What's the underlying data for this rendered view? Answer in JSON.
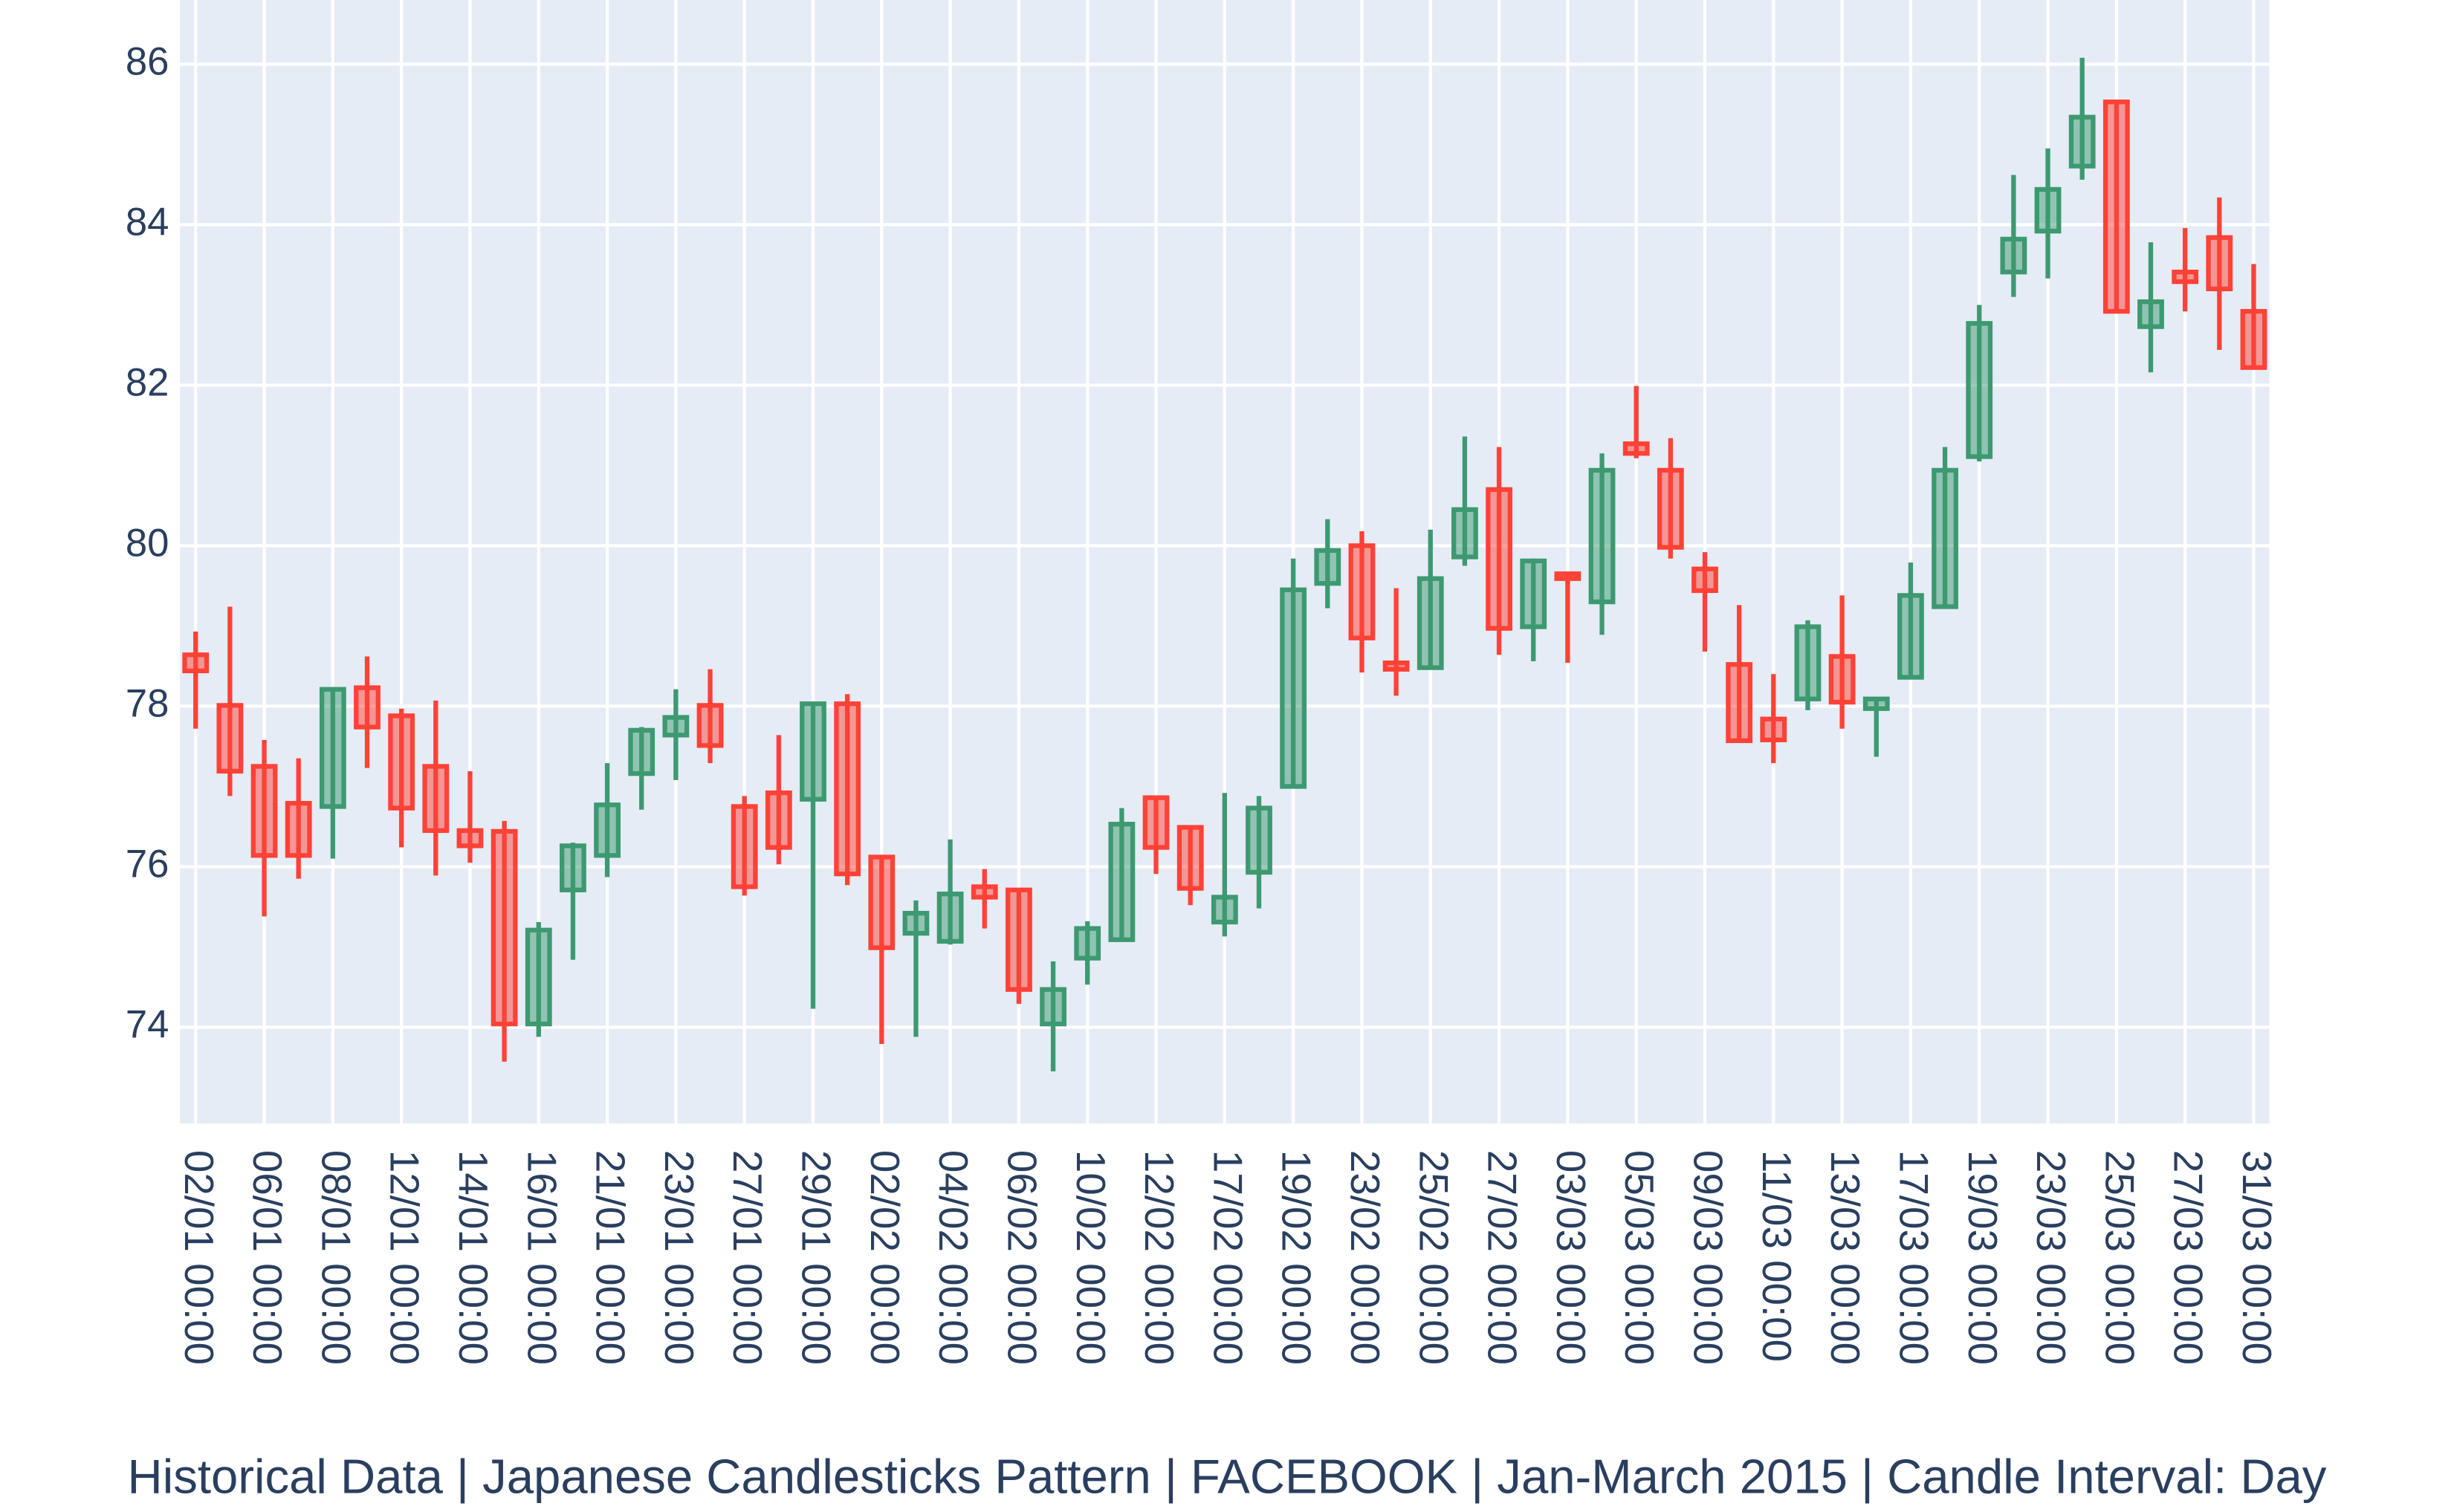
{
  "chart_data": {
    "type": "candlestick",
    "title": "Historical Data | Japanese Candlesticks Pattern | FACEBOOK | Jan-March 2015 | Candle Interval: Day",
    "categories": [
      "02/01 00:00",
      null,
      "06/01 00:00",
      null,
      "08/01 00:00",
      null,
      "12/01 00:00",
      null,
      "14/01 00:00",
      null,
      "16/01 00:00",
      null,
      "21/01 00:00",
      null,
      "23/01 00:00",
      null,
      "27/01 00:00",
      null,
      "29/01 00:00",
      null,
      "02/02 00:00",
      null,
      "04/02 00:00",
      null,
      "06/02 00:00",
      null,
      "10/02 00:00",
      null,
      "12/02 00:00",
      null,
      "17/02 00:00",
      null,
      "19/02 00:00",
      null,
      "23/02 00:00",
      null,
      "25/02 00:00",
      null,
      "27/02 00:00",
      null,
      "03/03 00:00",
      null,
      "05/03 00:00",
      null,
      "09/03 00:00",
      null,
      "11/03 00:00",
      null,
      "13/03 00:00",
      null,
      "17/03 00:00",
      null,
      "19/03 00:00",
      null,
      "23/03 00:00",
      null,
      "25/03 00:00",
      null,
      "27/03 00:00",
      null,
      "31/03 00:00"
    ],
    "open": [
      78.64,
      78.01,
      77.25,
      76.79,
      76.75,
      78.23,
      77.88,
      77.25,
      76.45,
      76.44,
      74.04,
      75.71,
      76.14,
      77.16,
      77.64,
      78.01,
      76.75,
      76.92,
      76.84,
      78.03,
      76.12,
      75.17,
      75.07,
      75.75,
      75.71,
      74.04,
      74.86,
      75.09,
      76.86,
      76.49,
      75.31,
      75.93,
      77.0,
      79.53,
      80.0,
      78.54,
      78.48,
      79.86,
      80.7,
      78.99,
      79.65,
      79.3,
      81.27,
      80.94,
      79.71,
      78.52,
      77.84,
      78.09,
      78.62,
      77.97,
      78.36,
      79.24,
      81.11,
      83.41,
      83.92,
      84.73,
      85.53,
      82.73,
      83.41,
      83.84,
      82.92
    ],
    "high": [
      78.93,
      79.24,
      77.58,
      77.35,
      78.21,
      78.62,
      77.97,
      78.07,
      77.19,
      76.57,
      75.31,
      76.3,
      77.29,
      77.74,
      78.21,
      78.46,
      76.88,
      77.64,
      78.03,
      78.15,
      76.12,
      75.58,
      76.34,
      75.97,
      75.71,
      74.82,
      75.32,
      76.73,
      76.86,
      76.49,
      76.92,
      76.88,
      79.84,
      80.33,
      80.18,
      79.47,
      80.2,
      81.36,
      81.23,
      79.84,
      79.65,
      81.15,
      81.99,
      81.34,
      79.92,
      79.26,
      78.4,
      79.07,
      79.38,
      78.09,
      79.79,
      81.23,
      83.0,
      84.62,
      84.95,
      86.08,
      85.53,
      83.78,
      83.96,
      84.34,
      83.51
    ],
    "low": [
      77.72,
      76.88,
      75.38,
      75.85,
      76.1,
      77.23,
      76.24,
      75.89,
      76.05,
      73.57,
      73.88,
      74.84,
      75.87,
      76.71,
      77.08,
      77.29,
      75.64,
      76.03,
      74.23,
      75.77,
      73.79,
      73.88,
      75.03,
      75.23,
      74.29,
      73.45,
      74.53,
      75.07,
      75.91,
      75.52,
      75.13,
      75.48,
      77.0,
      79.22,
      78.42,
      78.13,
      78.48,
      79.75,
      78.64,
      78.56,
      78.54,
      78.89,
      81.09,
      79.84,
      78.68,
      77.57,
      77.29,
      77.95,
      77.72,
      77.37,
      78.36,
      79.22,
      81.05,
      83.1,
      83.33,
      84.56,
      82.92,
      82.16,
      82.92,
      82.44,
      82.22
    ],
    "close": [
      78.44,
      77.19,
      76.14,
      76.14,
      78.21,
      77.74,
      76.73,
      76.45,
      76.26,
      74.04,
      75.21,
      76.26,
      76.77,
      77.7,
      77.86,
      77.51,
      75.75,
      76.24,
      78.03,
      75.91,
      74.99,
      75.42,
      75.66,
      75.62,
      74.47,
      74.47,
      75.23,
      76.53,
      76.24,
      75.73,
      75.62,
      76.73,
      79.45,
      79.94,
      78.85,
      78.46,
      79.59,
      80.45,
      78.97,
      79.81,
      79.59,
      80.94,
      81.15,
      79.98,
      79.44,
      77.57,
      77.58,
      78.99,
      78.05,
      78.09,
      79.38,
      80.94,
      82.77,
      83.82,
      84.44,
      85.34,
      82.92,
      83.04,
      83.29,
      83.2,
      82.22
    ],
    "increasing_color": "#3D9970",
    "decreasing_color": "#FF4136",
    "ylim": [
      72.8,
      86.8
    ],
    "yticks": [
      74,
      76,
      78,
      80,
      82,
      84,
      86
    ],
    "grid": true
  }
}
